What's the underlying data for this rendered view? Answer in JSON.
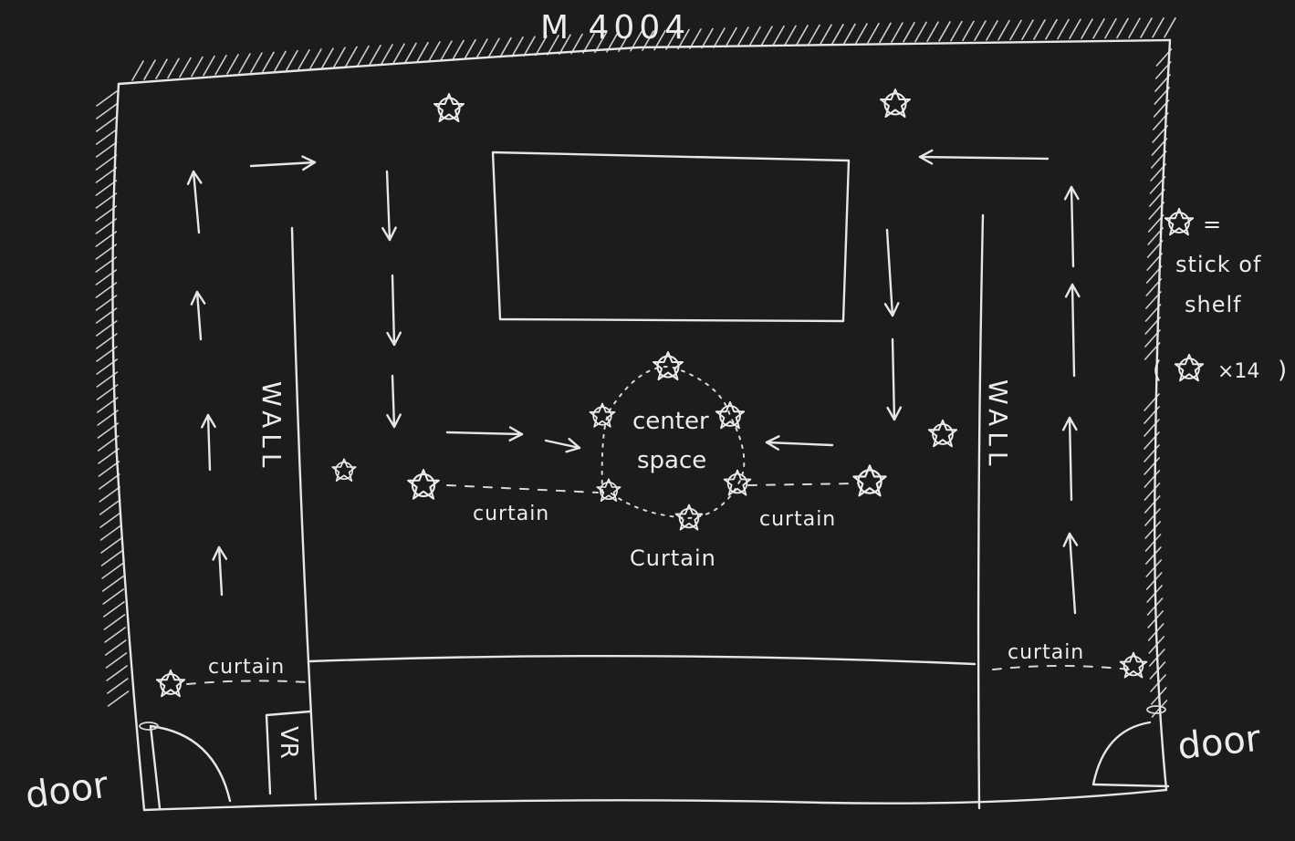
{
  "room_label": "M 4004",
  "center_label_line1": "center",
  "center_label_line2": "space",
  "wall_label": "WALL",
  "curtain_label_lower": "curtain",
  "curtain_label_center": "Curtain",
  "vr_label": "VR",
  "door_label": "door",
  "legend": {
    "symbol": "star-icon",
    "equals": "=",
    "line1": "stick of",
    "line2": "shelf",
    "count_open": "(",
    "count_text": "×14",
    "count_close": ")"
  },
  "colors": {
    "background": "#1c1c1e",
    "chalk": "#e6e6e6"
  }
}
